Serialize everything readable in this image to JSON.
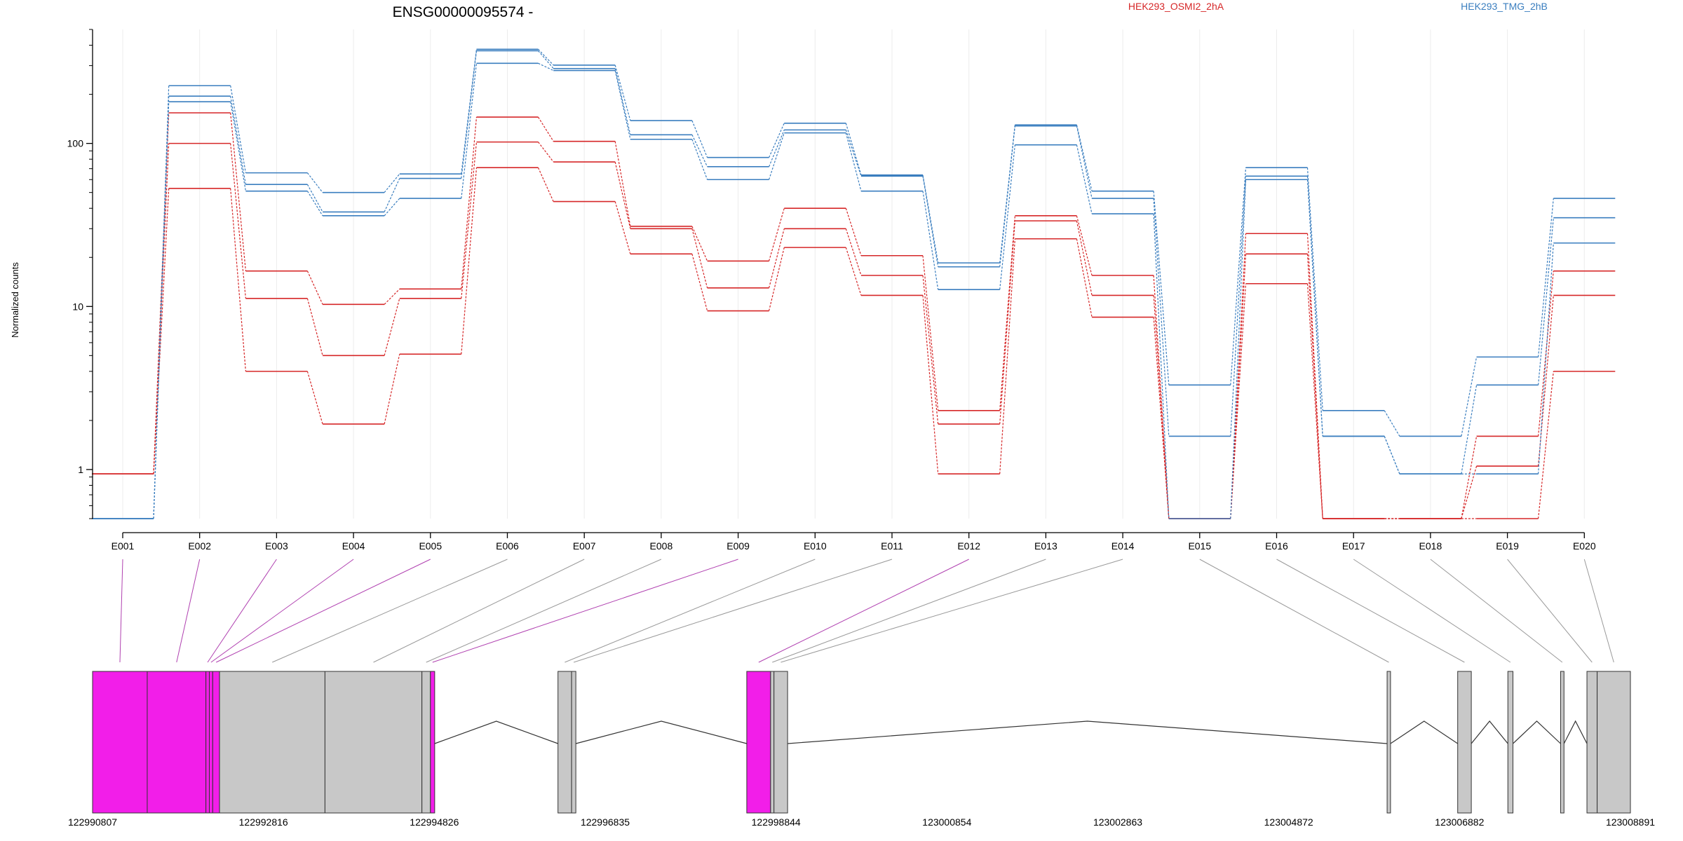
{
  "chart_data": {
    "type": "line",
    "title": "ENSG00000095574 -",
    "xlabel": "",
    "ylabel": "Normalized counts",
    "y_scale": "log",
    "ylim": [
      0.5,
      500
    ],
    "y_ticks": [
      {
        "value": 1,
        "label": "1"
      },
      {
        "value": 10,
        "label": "10"
      },
      {
        "value": 100,
        "label": "100"
      }
    ],
    "grid": "vertical at exon bins",
    "legend_position": "top",
    "categories": [
      "E001",
      "E002",
      "E003",
      "E004",
      "E005",
      "E006",
      "E007",
      "E008",
      "E009",
      "E010",
      "E011",
      "E012",
      "E013",
      "E014",
      "E015",
      "E016",
      "E017",
      "E018",
      "E019",
      "E020"
    ],
    "series": [
      {
        "name": "HEK293_OSMI2_2hA",
        "color": "#d62728",
        "line": 0,
        "values": [
          0.94,
          154,
          16.5,
          10.3,
          12.8,
          145,
          103,
          31,
          19,
          40,
          20.5,
          2.3,
          36,
          15.5,
          0.5,
          28,
          0.5,
          0.5,
          1.6,
          16.5
        ]
      },
      {
        "name": "HEK293_OSMI2_2hA",
        "color": "#d62728",
        "line": 1,
        "values": [
          0.94,
          100,
          11.2,
          5,
          11.2,
          102,
          77,
          30,
          13,
          30,
          15.5,
          1.9,
          33.5,
          11.7,
          0.5,
          21,
          0.5,
          0.5,
          1.05,
          11.7
        ]
      },
      {
        "name": "HEK293_OSMI2_2hA",
        "color": "#d62728",
        "line": 2,
        "values": [
          0.94,
          53,
          4,
          1.9,
          5.1,
          71,
          44,
          21,
          9.4,
          23,
          11.7,
          0.94,
          26,
          8.6,
          0.5,
          13.8,
          0.5,
          0.5,
          0.5,
          4
        ]
      },
      {
        "name": "HEK293_TMG_2hB",
        "color": "#3a7ebf",
        "line": 0,
        "values": [
          0.5,
          226,
          66,
          50,
          65,
          378,
          302,
          138,
          82,
          133,
          64,
          18.5,
          130,
          51,
          3.3,
          71,
          2.3,
          1.6,
          4.9,
          46
        ]
      },
      {
        "name": "HEK293_TMG_2hB",
        "color": "#3a7ebf",
        "line": 1,
        "values": [
          0.5,
          195,
          56,
          38,
          61,
          370,
          288,
          113,
          72,
          121,
          63,
          17.5,
          128,
          46,
          1.6,
          63,
          1.6,
          0.94,
          3.3,
          35
        ]
      },
      {
        "name": "HEK293_TMG_2hB",
        "color": "#3a7ebf",
        "line": 2,
        "values": [
          0.5,
          180,
          51,
          36,
          46,
          310,
          280,
          106,
          60,
          116,
          51,
          12.7,
          98,
          37,
          0.5,
          60,
          1.6,
          0.94,
          0.94,
          24.5
        ]
      }
    ],
    "legend": [
      {
        "name": "HEK293_OSMI2_2hA",
        "color": "#d62728"
      },
      {
        "name": "HEK293_TMG_2hB",
        "color": "#3a7ebf"
      }
    ],
    "gene_model": {
      "coordinate_range": [
        122990807,
        123008891
      ],
      "coordinate_labels": [
        "122990807",
        "122992816",
        "122994826",
        "122996835",
        "122998844",
        "123000854",
        "123002863",
        "123004872",
        "123006882",
        "123008891"
      ],
      "exon_color": "#c8c8c8",
      "highlight_color": "#f21ee9",
      "exon_bins": [
        {
          "id": "E001",
          "start": 122990807,
          "end": 122991450,
          "highlight": true
        },
        {
          "id": "E002",
          "start": 122991450,
          "end": 122992140,
          "highlight": true
        },
        {
          "id": "E003",
          "start": 122992140,
          "end": 122992180,
          "highlight": true
        },
        {
          "id": "E004",
          "start": 122992180,
          "end": 122992220,
          "highlight": true
        },
        {
          "id": "E005",
          "start": 122992220,
          "end": 122992300,
          "highlight": true
        },
        {
          "id": "E006",
          "start": 122992300,
          "end": 122993540,
          "highlight": false
        },
        {
          "id": "E007",
          "start": 122993540,
          "end": 122994680,
          "highlight": false
        },
        {
          "id": "E008",
          "start": 122994680,
          "end": 122994780,
          "highlight": false
        },
        {
          "id": "E009",
          "start": 122994780,
          "end": 122994830,
          "highlight": true
        },
        {
          "id": "E010",
          "start": 122996280,
          "end": 122996440,
          "highlight": false
        },
        {
          "id": "E011",
          "start": 122996440,
          "end": 122996490,
          "highlight": false
        },
        {
          "id": "E012",
          "start": 122998500,
          "end": 122998780,
          "highlight": true
        },
        {
          "id": "E013",
          "start": 122998780,
          "end": 122998820,
          "highlight": false
        },
        {
          "id": "E014",
          "start": 122998820,
          "end": 122998980,
          "highlight": false
        },
        {
          "id": "E015",
          "start": 123006030,
          "end": 123006070,
          "highlight": false
        },
        {
          "id": "E016",
          "start": 123006860,
          "end": 123007020,
          "highlight": false
        },
        {
          "id": "E017",
          "start": 123007450,
          "end": 123007510,
          "highlight": false
        },
        {
          "id": "E018",
          "start": 123008070,
          "end": 123008110,
          "highlight": false
        },
        {
          "id": "E019",
          "start": 123008380,
          "end": 123008500,
          "highlight": false
        },
        {
          "id": "E020",
          "start": 123008500,
          "end": 123008891,
          "highlight": false
        }
      ],
      "introns": [
        [
          122994830,
          122996280
        ],
        [
          122996490,
          122998500
        ],
        [
          122998980,
          123006030
        ],
        [
          123006070,
          123006860
        ],
        [
          123007020,
          123007450
        ],
        [
          123007510,
          123008070
        ],
        [
          123008110,
          123008380
        ]
      ]
    }
  }
}
